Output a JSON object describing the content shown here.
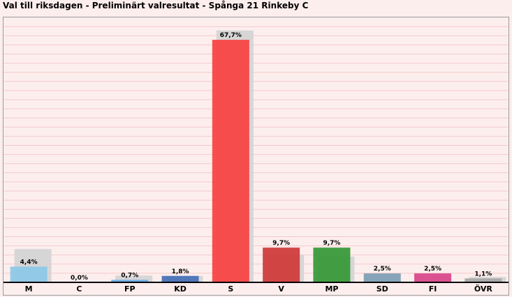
{
  "title": "Val till riksdagen - Preliminärt valresultat - Spånga 21 Rinkeby C",
  "chart_data": {
    "type": "bar",
    "title": "Val till riksdagen - Preliminärt valresultat - Spånga 21 Rinkeby C",
    "categories": [
      "M",
      "C",
      "FP",
      "KD",
      "S",
      "V",
      "MP",
      "SD",
      "FI",
      "ÖVR"
    ],
    "series": [
      {
        "values": [
          4.4,
          0.0,
          0.7,
          1.8,
          67.7,
          9.7,
          9.7,
          2.5,
          2.5,
          1.1
        ],
        "labels": [
          "4,4%",
          "0,0%",
          "0,7%",
          "1,8%",
          "67,7%",
          "9,7%",
          "9,7%",
          "2,5%",
          "2,5%",
          "1,1%"
        ],
        "colors": [
          "#8ec8e8",
          "#3fa85a",
          "#6aaee8",
          "#4a72b8",
          "#f84444",
          "#d03c3c",
          "#3a9a3a",
          "#7f9fb5",
          "#d84a8a",
          "#a8a8a8"
        ]
      },
      {
        "values": [
          9.3,
          0.0,
          1.9,
          1.8,
          70.3,
          7.7,
          7.2,
          0.0,
          0.0,
          1.5
        ],
        "color": "#d3d3d3"
      }
    ],
    "ylim": [
      0,
      72
    ],
    "grid": true,
    "legend": "none"
  }
}
